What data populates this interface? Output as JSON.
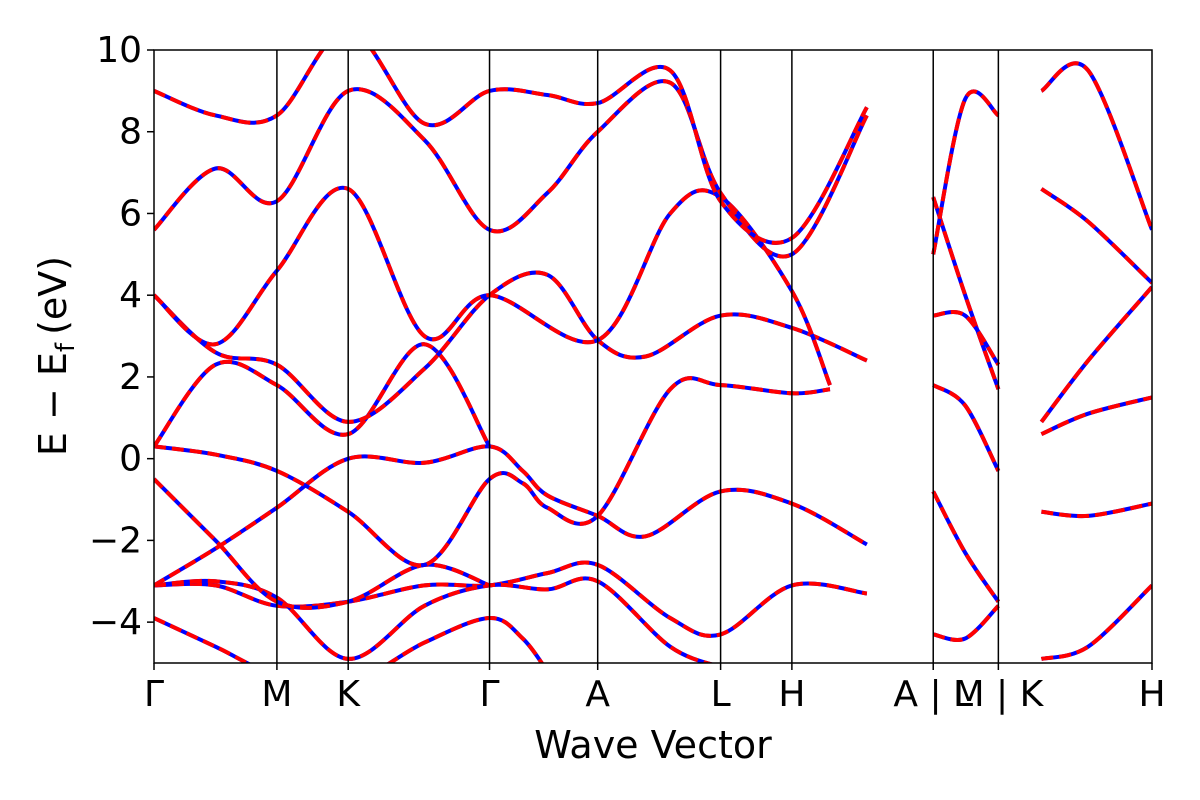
{
  "chart_data": {
    "type": "line",
    "title": "",
    "xlabel": "Wave Vector",
    "ylabel_main": "E − E",
    "ylabel_sub": "f",
    "ylabel_unit": "(eV)",
    "ylim": [
      -5,
      10
    ],
    "yticks": [
      {
        "value": 10,
        "label": "10"
      },
      {
        "value": 8,
        "label": "8"
      },
      {
        "value": 6,
        "label": "6"
      },
      {
        "value": 4,
        "label": "4"
      },
      {
        "value": 2,
        "label": "2"
      },
      {
        "value": 0,
        "label": "0"
      },
      {
        "value": -2,
        "label": "−2"
      },
      {
        "value": -4,
        "label": "−4"
      }
    ],
    "kpath": [
      {
        "k": 0.0,
        "label": "Γ"
      },
      {
        "k": 1.0,
        "label": "M"
      },
      {
        "k": 1.58,
        "label": "K"
      },
      {
        "k": 2.73,
        "label": "Γ"
      },
      {
        "k": 3.61,
        "label": "A"
      },
      {
        "k": 4.61,
        "label": "L"
      },
      {
        "k": 5.19,
        "label": "H"
      },
      {
        "k": 6.34,
        "label": "A | L"
      },
      {
        "k": 6.87,
        "label": "M | K"
      },
      {
        "k": 8.12,
        "label": "H"
      }
    ],
    "segment_breaks": [
      6.34,
      7.22
    ],
    "xlim": [
      0,
      8.12
    ],
    "series_styles": {
      "dft": "#0000ff",
      "wannier": "#ff0000"
    },
    "bands": [
      {
        "name": "b1",
        "points": [
          [
            0,
            -3.9
          ],
          [
            0.5,
            -4.6
          ],
          [
            1.0,
            -5.3
          ],
          [
            1.58,
            -5.5
          ],
          [
            2.2,
            -4.5
          ],
          [
            2.73,
            -3.9
          ],
          [
            3.0,
            -4.4
          ],
          [
            3.2,
            -5.2
          ]
        ]
      },
      {
        "name": "b2",
        "points": [
          [
            0,
            -3.1
          ],
          [
            0.5,
            -3.1
          ],
          [
            1.0,
            -3.6
          ],
          [
            1.58,
            -3.5
          ],
          [
            2.2,
            -3.1
          ],
          [
            2.73,
            -3.1
          ],
          [
            3.2,
            -2.8
          ],
          [
            3.61,
            -2.6
          ],
          [
            4.2,
            -3.9
          ],
          [
            4.61,
            -4.3
          ],
          [
            5.19,
            -3.1
          ],
          [
            5.8,
            -3.3
          ],
          [
            6.34,
            -2.6
          ]
        ]
      },
      {
        "name": "b3",
        "points": [
          [
            0,
            -3.1
          ],
          [
            0.5,
            -3.0
          ],
          [
            1.0,
            -3.4
          ],
          [
            1.58,
            -4.9
          ],
          [
            2.2,
            -3.6
          ],
          [
            2.73,
            -3.1
          ],
          [
            3.2,
            -3.2
          ],
          [
            3.61,
            -3.0
          ],
          [
            4.2,
            -4.6
          ],
          [
            4.61,
            -5.1
          ]
        ]
      },
      {
        "name": "b4",
        "points": [
          [
            0,
            -0.5
          ],
          [
            0.5,
            -2.0
          ],
          [
            1.0,
            -3.5
          ],
          [
            1.58,
            -3.5
          ],
          [
            2.2,
            -2.6
          ],
          [
            2.73,
            -3.1
          ]
        ]
      },
      {
        "name": "b5",
        "points": [
          [
            0,
            -3.1
          ],
          [
            0.5,
            -2.2
          ],
          [
            1.0,
            -1.2
          ],
          [
            1.58,
            0.0
          ],
          [
            2.2,
            -0.1
          ],
          [
            2.73,
            0.3
          ],
          [
            3.0,
            -0.3
          ],
          [
            3.2,
            -0.9
          ],
          [
            3.61,
            -1.4
          ],
          [
            4.0,
            -1.9
          ],
          [
            4.61,
            -0.8
          ],
          [
            5.19,
            -1.1
          ],
          [
            5.8,
            -2.1
          ],
          [
            6.34,
            -1.4
          ]
        ]
      },
      {
        "name": "b6",
        "points": [
          [
            0,
            0.3
          ],
          [
            0.5,
            0.1
          ],
          [
            1.0,
            -0.3
          ],
          [
            1.58,
            -1.3
          ],
          [
            2.2,
            -2.6
          ],
          [
            2.73,
            -0.5
          ],
          [
            3.0,
            -0.6
          ],
          [
            3.2,
            -1.2
          ],
          [
            3.61,
            -1.4
          ],
          [
            4.2,
            1.7
          ],
          [
            4.61,
            1.8
          ],
          [
            5.19,
            1.6
          ],
          [
            5.5,
            1.7
          ],
          [
            6.34,
            1.4
          ]
        ]
      },
      {
        "name": "b7",
        "points": [
          [
            0,
            0.3
          ],
          [
            0.5,
            2.3
          ],
          [
            1.0,
            1.8
          ],
          [
            1.58,
            0.6
          ],
          [
            2.2,
            2.8
          ],
          [
            2.73,
            0.3
          ]
        ]
      },
      {
        "name": "b8",
        "points": [
          [
            0,
            4.0
          ],
          [
            0.5,
            2.6
          ],
          [
            1.0,
            2.3
          ],
          [
            1.58,
            0.9
          ],
          [
            2.2,
            2.2
          ],
          [
            2.73,
            4.0
          ],
          [
            3.2,
            4.5
          ],
          [
            3.61,
            2.9
          ],
          [
            4.0,
            2.5
          ],
          [
            4.61,
            3.5
          ],
          [
            5.19,
            3.2
          ],
          [
            5.8,
            2.4
          ],
          [
            6.34,
            2.9
          ]
        ]
      },
      {
        "name": "b9",
        "points": [
          [
            0,
            4.0
          ],
          [
            0.5,
            2.8
          ],
          [
            1.0,
            4.6
          ],
          [
            1.58,
            6.6
          ],
          [
            2.2,
            3.0
          ],
          [
            2.73,
            4.0
          ],
          [
            3.61,
            2.9
          ],
          [
            4.2,
            6.0
          ],
          [
            4.61,
            6.4
          ],
          [
            5.19,
            4.1
          ],
          [
            5.5,
            1.8
          ],
          [
            6.34,
            1.4
          ]
        ]
      },
      {
        "name": "b10",
        "points": [
          [
            0,
            5.6
          ],
          [
            0.5,
            7.1
          ],
          [
            1.0,
            6.3
          ],
          [
            1.58,
            9.0
          ],
          [
            2.2,
            7.8
          ],
          [
            2.73,
            5.6
          ],
          [
            3.2,
            6.5
          ],
          [
            3.61,
            8.0
          ],
          [
            4.2,
            9.2
          ],
          [
            4.61,
            6.5
          ],
          [
            5.19,
            5.0
          ],
          [
            5.8,
            8.4
          ],
          [
            6.34,
            8.1
          ]
        ]
      },
      {
        "name": "b11",
        "points": [
          [
            0,
            9.0
          ],
          [
            0.5,
            8.4
          ],
          [
            1.0,
            8.4
          ],
          [
            1.58,
            10.5
          ],
          [
            2.2,
            8.2
          ],
          [
            2.73,
            9.0
          ],
          [
            3.2,
            8.9
          ],
          [
            3.61,
            8.7
          ],
          [
            4.2,
            9.5
          ],
          [
            4.61,
            6.3
          ],
          [
            5.19,
            5.4
          ],
          [
            5.8,
            8.6
          ],
          [
            6.34,
            8.7
          ]
        ]
      },
      {
        "name": "b12",
        "points": [
          [
            6.34,
            6.4
          ],
          [
            6.6,
            4.0
          ],
          [
            6.87,
            1.7
          ]
        ]
      },
      {
        "name": "b13",
        "points": [
          [
            6.34,
            5.0
          ],
          [
            6.6,
            8.8
          ],
          [
            6.87,
            8.4
          ]
        ]
      },
      {
        "name": "b14",
        "points": [
          [
            6.34,
            3.5
          ],
          [
            6.6,
            3.5
          ],
          [
            6.87,
            2.3
          ]
        ]
      },
      {
        "name": "b15",
        "points": [
          [
            6.34,
            1.8
          ],
          [
            6.6,
            1.3
          ],
          [
            6.87,
            -0.3
          ]
        ]
      },
      {
        "name": "b16",
        "points": [
          [
            6.34,
            -0.8
          ],
          [
            6.6,
            -2.3
          ],
          [
            6.87,
            -3.5
          ]
        ]
      },
      {
        "name": "b17",
        "points": [
          [
            6.34,
            -4.3
          ],
          [
            6.6,
            -4.4
          ],
          [
            6.87,
            -3.6
          ]
        ]
      },
      {
        "name": "b18",
        "points": [
          [
            7.22,
            0.9
          ],
          [
            7.6,
            2.4
          ],
          [
            8.12,
            4.2
          ]
        ]
      },
      {
        "name": "b19",
        "points": [
          [
            7.22,
            0.6
          ],
          [
            7.6,
            1.1
          ],
          [
            8.12,
            1.5
          ]
        ]
      },
      {
        "name": "b20",
        "points": [
          [
            7.22,
            -1.3
          ],
          [
            7.6,
            -1.4
          ],
          [
            8.12,
            -1.1
          ]
        ]
      },
      {
        "name": "b21",
        "points": [
          [
            7.22,
            6.6
          ],
          [
            7.6,
            5.8
          ],
          [
            8.12,
            4.3
          ]
        ]
      },
      {
        "name": "b22",
        "points": [
          [
            7.22,
            9.0
          ],
          [
            7.6,
            9.5
          ],
          [
            8.12,
            5.6
          ]
        ]
      },
      {
        "name": "b23",
        "points": [
          [
            7.22,
            -4.9
          ],
          [
            7.6,
            -4.6
          ],
          [
            8.12,
            -3.1
          ]
        ]
      }
    ]
  }
}
